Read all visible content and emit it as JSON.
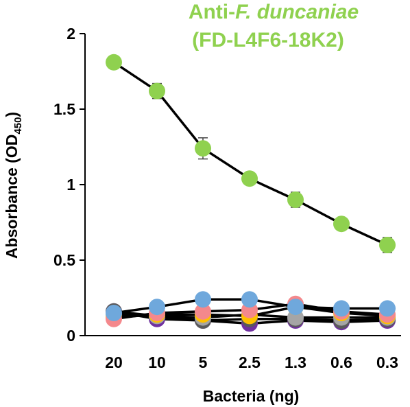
{
  "chart_data": {
    "type": "line",
    "title_prefix": "Anti-",
    "title_italic": "F. duncaniae",
    "subtitle": "(FD-L4F6-18K2)",
    "title_color": "#8fd14f",
    "xlabel": "Bacteria (ng)",
    "ylabel_main": "Absorbance (OD",
    "ylabel_sub": "450",
    "ylabel_end": ")",
    "categories": [
      "20",
      "10",
      "5",
      "2.5",
      "1.3",
      "0.6",
      "0.3"
    ],
    "ylim": [
      0,
      2
    ],
    "yticks": [
      0,
      0.5,
      1,
      1.5,
      2
    ],
    "ytick_labels": [
      "0",
      "0.5",
      "1",
      "1.5",
      "2"
    ],
    "grid": false,
    "series": [
      {
        "color": "#8fd14f",
        "values": [
          1.81,
          1.62,
          1.24,
          1.04,
          0.9,
          0.74,
          0.6
        ],
        "errors": [
          0.03,
          0.05,
          0.07,
          0.02,
          0.05,
          0.02,
          0.05
        ]
      },
      {
        "color": "#6fa8dc",
        "values": [
          0.15,
          0.19,
          0.24,
          0.24,
          0.19,
          0.18,
          0.18
        ],
        "errors": []
      },
      {
        "color": "#f4888c",
        "values": [
          0.11,
          0.15,
          0.16,
          0.17,
          0.21,
          0.16,
          0.14
        ],
        "errors": []
      },
      {
        "color": "#ffc000",
        "values": [
          0.12,
          0.14,
          0.14,
          0.13,
          0.19,
          0.15,
          0.13
        ],
        "errors": []
      },
      {
        "color": "#a5a5a5",
        "values": [
          0.14,
          0.13,
          0.12,
          0.14,
          0.12,
          0.12,
          0.12
        ],
        "errors": []
      },
      {
        "color": "#5a5a5a",
        "values": [
          0.16,
          0.13,
          0.1,
          0.11,
          0.11,
          0.1,
          0.11
        ],
        "errors": []
      },
      {
        "color": "#7030a0",
        "values": [
          0.16,
          0.11,
          0.1,
          0.08,
          0.1,
          0.09,
          0.1
        ],
        "errors": []
      }
    ]
  }
}
